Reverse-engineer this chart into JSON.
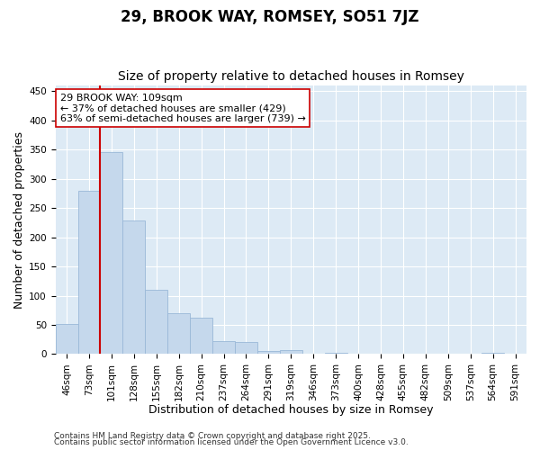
{
  "title": "29, BROOK WAY, ROMSEY, SO51 7JZ",
  "subtitle": "Size of property relative to detached houses in Romsey",
  "xlabel": "Distribution of detached houses by size in Romsey",
  "ylabel": "Number of detached properties",
  "bar_labels": [
    "46sqm",
    "73sqm",
    "101sqm",
    "128sqm",
    "155sqm",
    "182sqm",
    "210sqm",
    "237sqm",
    "264sqm",
    "291sqm",
    "319sqm",
    "346sqm",
    "373sqm",
    "400sqm",
    "428sqm",
    "455sqm",
    "482sqm",
    "509sqm",
    "537sqm",
    "564sqm",
    "591sqm"
  ],
  "bar_values": [
    51,
    280,
    345,
    228,
    110,
    70,
    62,
    22,
    20,
    5,
    7,
    0,
    2,
    0,
    1,
    0,
    0,
    0,
    0,
    2,
    0
  ],
  "bar_color": "#c5d8ec",
  "bar_edge_color": "#9ab8d8",
  "vline_x_index": 2,
  "vline_color": "#cc0000",
  "annotation_text": "29 BROOK WAY: 109sqm\n← 37% of detached houses are smaller (429)\n63% of semi-detached houses are larger (739) →",
  "annotation_box_facecolor": "#ffffff",
  "annotation_box_edgecolor": "#cc0000",
  "ylim": [
    0,
    460
  ],
  "yticks": [
    0,
    50,
    100,
    150,
    200,
    250,
    300,
    350,
    400,
    450
  ],
  "fig_facecolor": "#ffffff",
  "plot_facecolor": "#ddeaf5",
  "grid_color": "#ffffff",
  "footer_line1": "Contains HM Land Registry data © Crown copyright and database right 2025.",
  "footer_line2": "Contains public sector information licensed under the Open Government Licence v3.0.",
  "title_fontsize": 12,
  "subtitle_fontsize": 10,
  "axis_label_fontsize": 9,
  "tick_fontsize": 7.5,
  "annotation_fontsize": 8,
  "footer_fontsize": 6.5
}
